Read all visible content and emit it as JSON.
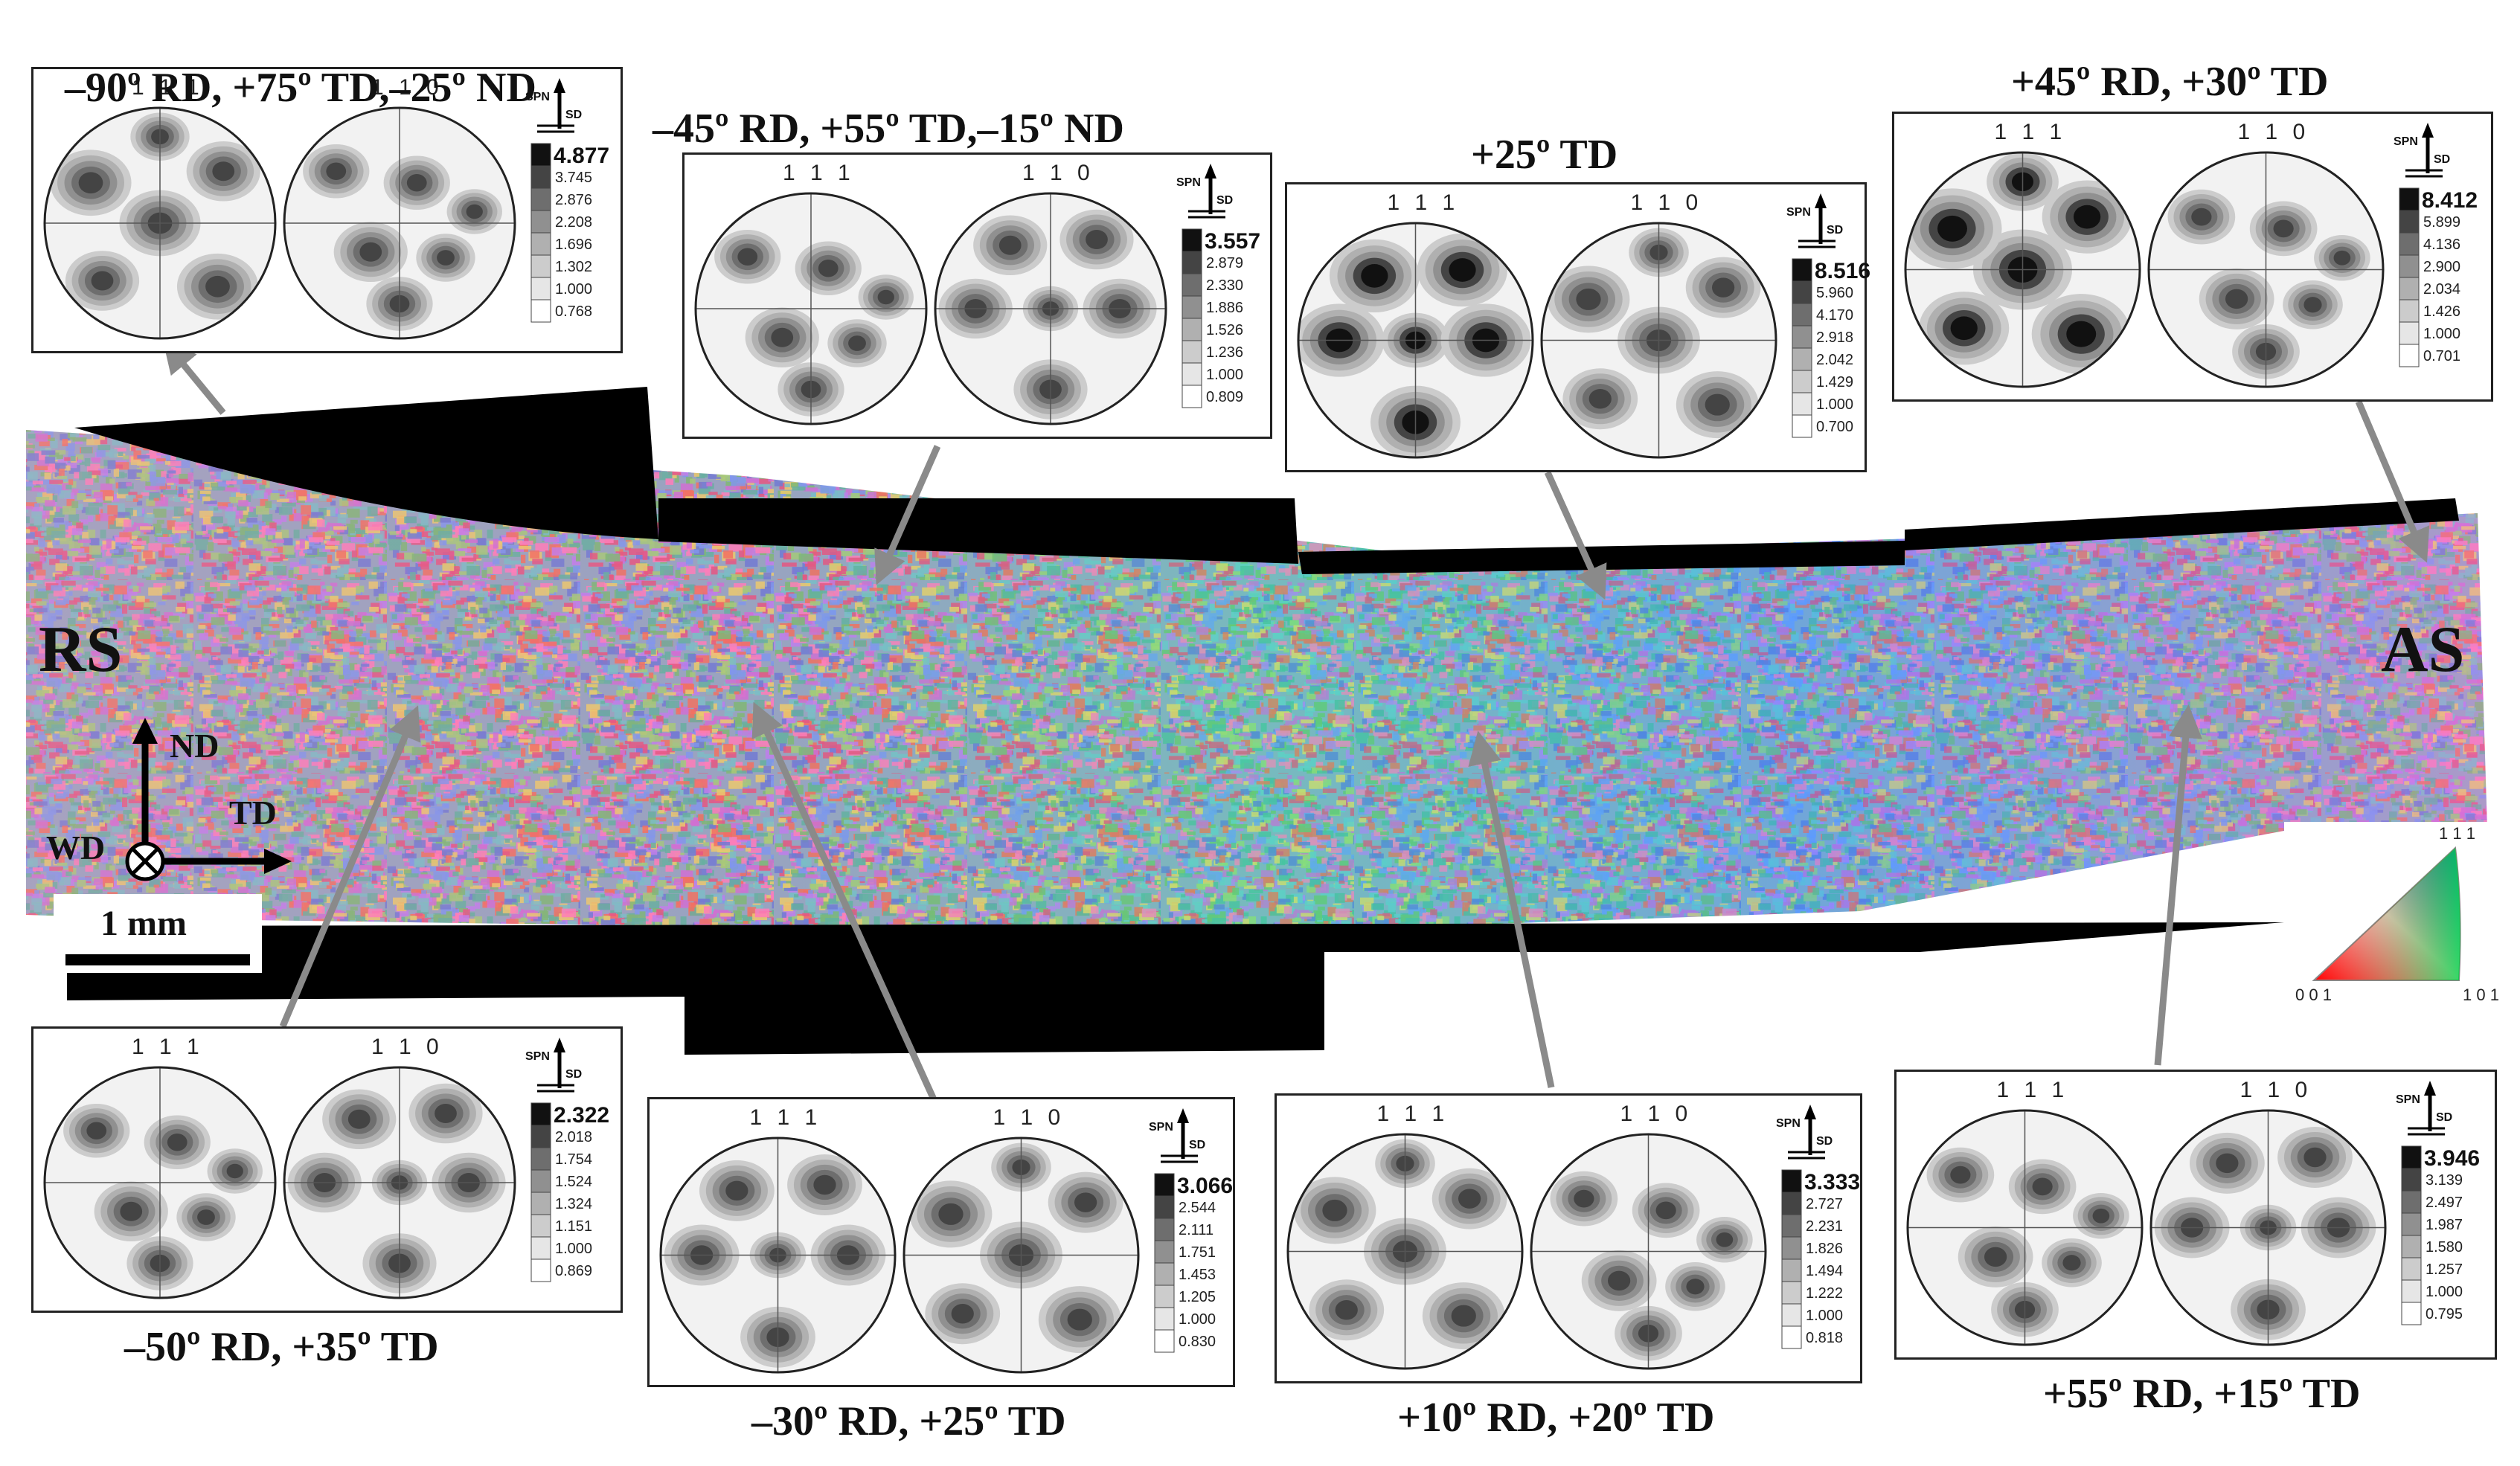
{
  "map": {
    "left_label": "RS",
    "right_label": "AS",
    "axes": {
      "nd": "ND",
      "td": "TD",
      "wd": "WD"
    },
    "scale_bar": "1 mm",
    "color_key": {
      "top": "1 1 1",
      "bottom_left": "0 0 1",
      "bottom_right": "1 0 1"
    }
  },
  "panel_common": {
    "pf1": "1 1 1",
    "pf2": "1 1 0",
    "spn": "SPN",
    "sd": "SD"
  },
  "panels": [
    {
      "caption": "–90º RD, +75º TD,–25º ND",
      "legend": [
        "4.877",
        "3.745",
        "2.876",
        "2.208",
        "1.696",
        "1.302",
        "1.000",
        "0.768"
      ]
    },
    {
      "caption": "–45º RD, +55º TD,–15º ND",
      "legend": [
        "3.557",
        "2.879",
        "2.330",
        "1.886",
        "1.526",
        "1.236",
        "1.000",
        "0.809"
      ]
    },
    {
      "caption": "+25º TD",
      "legend": [
        "8.516",
        "5.960",
        "4.170",
        "2.918",
        "2.042",
        "1.429",
        "1.000",
        "0.700"
      ]
    },
    {
      "caption": "+45º RD, +30º TD",
      "legend": [
        "8.412",
        "5.899",
        "4.136",
        "2.900",
        "2.034",
        "1.426",
        "1.000",
        "0.701"
      ]
    },
    {
      "caption": "–50º RD, +35º TD",
      "legend": [
        "2.322",
        "2.018",
        "1.754",
        "1.524",
        "1.324",
        "1.151",
        "1.000",
        "0.869"
      ]
    },
    {
      "caption": "–30º RD, +25º TD",
      "legend": [
        "3.066",
        "2.544",
        "2.111",
        "1.751",
        "1.453",
        "1.205",
        "1.000",
        "0.830"
      ]
    },
    {
      "caption": "+10º RD, +20º TD",
      "legend": [
        "3.333",
        "2.727",
        "2.231",
        "1.826",
        "1.494",
        "1.222",
        "1.000",
        "0.818"
      ]
    },
    {
      "caption": "+55º RD, +15º TD",
      "legend": [
        "3.946",
        "3.139",
        "2.497",
        "1.987",
        "1.580",
        "1.257",
        "1.000",
        "0.795"
      ]
    }
  ]
}
